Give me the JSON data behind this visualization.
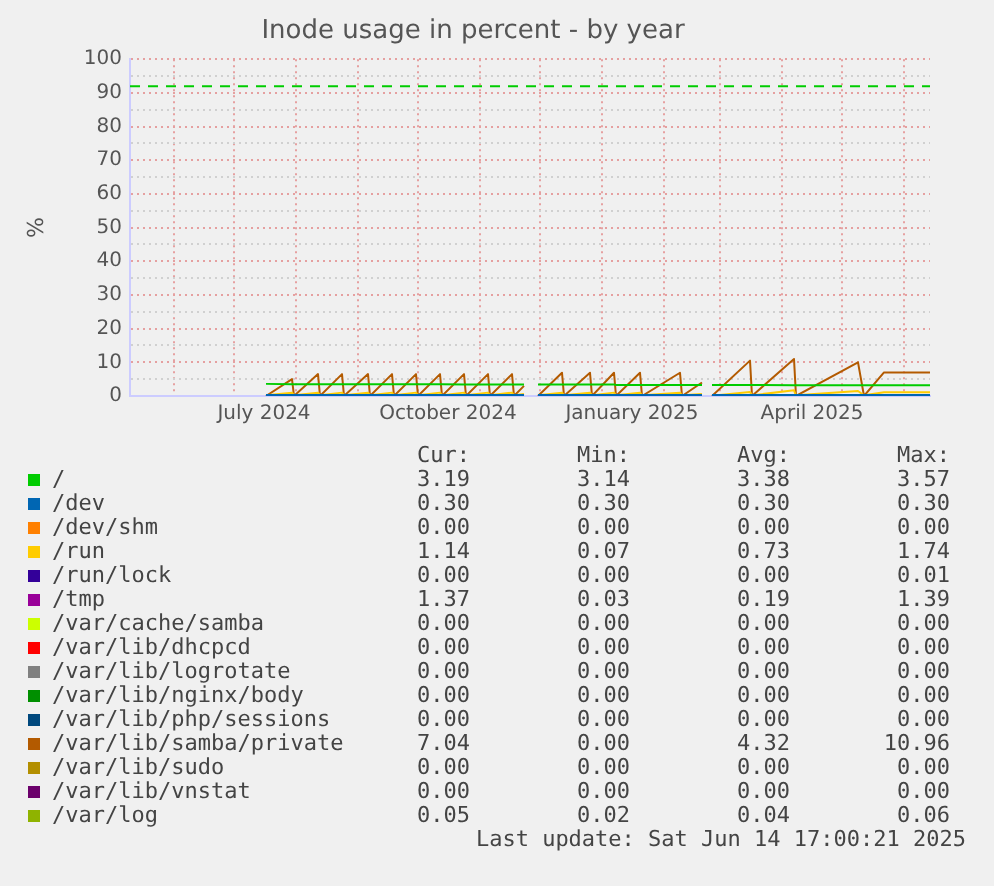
{
  "chart_data": {
    "type": "line",
    "title": "Inode usage in percent - by year",
    "ylabel": "%",
    "x": [
      "2024-07-17",
      "2024-07-30",
      "2024-07-31",
      "2024-08-12",
      "2024-08-13",
      "2024-08-24",
      "2024-08-25",
      "2024-09-06",
      "2024-09-07",
      "2024-09-18",
      "2024-09-19",
      "2024-09-30",
      "2024-10-01",
      "2024-10-12",
      "2024-10-13",
      "2024-10-24",
      "2024-10-25",
      "2024-11-05",
      "2024-11-06",
      "2024-11-17",
      "2024-11-18",
      "2024-11-23",
      "2024-11-26",
      "2024-11-30",
      "2024-12-12",
      "2024-12-13",
      "2024-12-26",
      "2024-12-27",
      "2025-01-07",
      "2025-01-08",
      "2025-01-20",
      "2025-01-21",
      "2025-02-09",
      "2025-02-10",
      "2025-02-20",
      "2025-02-22",
      "2025-02-25",
      "2025-03-16",
      "2025-03-17",
      "2025-04-07",
      "2025-04-08",
      "2025-05-09",
      "2025-05-12",
      "2025-05-22",
      "2025-06-14"
    ],
    "xlim": [
      "2024-05-10",
      "2025-06-14"
    ],
    "xticks": [
      {
        "value": "2024-06-01",
        "label": null
      },
      {
        "value": "2024-07-01",
        "label": null
      },
      {
        "value": "2024-07-16",
        "label": "July 2024"
      },
      {
        "value": "2024-08-01",
        "label": null
      },
      {
        "value": "2024-09-01",
        "label": null
      },
      {
        "value": "2024-10-01",
        "label": null
      },
      {
        "value": "2024-10-16",
        "label": "October 2024"
      },
      {
        "value": "2024-11-01",
        "label": null
      },
      {
        "value": "2024-12-01",
        "label": null
      },
      {
        "value": "2025-01-01",
        "label": null
      },
      {
        "value": "2025-01-16",
        "label": "January 2025"
      },
      {
        "value": "2025-02-01",
        "label": null
      },
      {
        "value": "2025-03-01",
        "label": null
      },
      {
        "value": "2025-04-01",
        "label": null
      },
      {
        "value": "2025-04-16",
        "label": "April 2025"
      },
      {
        "value": "2025-05-01",
        "label": null
      },
      {
        "value": "2025-06-01",
        "label": null
      }
    ],
    "ylim": [
      0,
      100
    ],
    "yticks": [
      0,
      {
        "value": 5,
        "label": null
      },
      10,
      {
        "value": 15,
        "label": null
      },
      20,
      {
        "value": 25,
        "label": null
      },
      30,
      {
        "value": 35,
        "label": null
      },
      40,
      {
        "value": 45,
        "label": null
      },
      50,
      {
        "value": 55,
        "label": null
      },
      60,
      {
        "value": 65,
        "label": null
      },
      70,
      {
        "value": 75,
        "label": null
      },
      80,
      {
        "value": 85,
        "label": null
      },
      90,
      {
        "value": 95,
        "label": null
      },
      100
    ],
    "grid": true,
    "legend": "bottom",
    "marker": "none",
    "line_style": "solid",
    "ref_lines": [
      {
        "axis": "y",
        "value": 92,
        "color": "#00cc00",
        "line_style": "dashed"
      }
    ],
    "series": [
      {
        "name": "/",
        "color": "#00cc00",
        "values": [
          3.6,
          3.5,
          3.5,
          3.5,
          3.5,
          3.5,
          3.5,
          3.5,
          3.5,
          3.5,
          3.5,
          3.5,
          3.5,
          3.5,
          3.5,
          3.4,
          3.4,
          3.4,
          3.4,
          3.4,
          3.4,
          3.4,
          null,
          3.4,
          3.4,
          3.4,
          3.4,
          3.4,
          3.4,
          3.3,
          3.3,
          3.3,
          3.3,
          3.3,
          3.3,
          null,
          3.3,
          3.3,
          3.3,
          3.2,
          3.2,
          3.2,
          3.2,
          3.2,
          3.2
        ]
      },
      {
        "name": "/dev",
        "color": "#0066b3",
        "values": [
          0.3,
          0.3,
          0.3,
          0.3,
          0.3,
          0.3,
          0.3,
          0.3,
          0.3,
          0.3,
          0.3,
          0.3,
          0.3,
          0.3,
          0.3,
          0.3,
          0.3,
          0.3,
          0.3,
          0.3,
          0.3,
          0.3,
          null,
          0.3,
          0.3,
          0.3,
          0.3,
          0.3,
          0.3,
          0.3,
          0.3,
          0.3,
          0.3,
          0.3,
          0.3,
          null,
          0.3,
          0.3,
          0.3,
          0.3,
          0.3,
          0.3,
          0.3,
          0.3,
          0.3
        ]
      },
      {
        "name": "/dev/shm",
        "color": "#ff8000",
        "values": [
          null,
          null,
          null,
          null,
          null,
          null,
          null,
          null,
          null,
          null,
          null,
          null,
          null,
          null,
          null,
          null,
          null,
          null,
          null,
          null,
          null,
          null,
          null,
          null,
          null,
          null,
          null,
          null,
          null,
          null,
          null,
          null,
          null,
          null,
          null,
          null,
          null,
          null,
          null,
          null,
          null,
          null,
          null,
          null,
          null
        ]
      },
      {
        "name": "/run",
        "color": "#ffcc00",
        "values": [
          0.2,
          1.0,
          0.2,
          1.0,
          0.2,
          1.0,
          0.2,
          1.0,
          0.2,
          1.0,
          0.2,
          1.0,
          0.2,
          1.0,
          0.2,
          1.0,
          0.2,
          1.0,
          0.2,
          1.0,
          0.2,
          0.6,
          null,
          0.2,
          1.0,
          0.2,
          1.0,
          0.2,
          1.0,
          0.2,
          1.0,
          0.2,
          1.0,
          0.2,
          0.6,
          null,
          0.1,
          1.2,
          0.2,
          1.7,
          0.2,
          1.5,
          0.2,
          1.1,
          1.1
        ]
      },
      {
        "name": "/run/lock",
        "color": "#330099",
        "values": [
          null,
          null,
          null,
          null,
          null,
          null,
          null,
          null,
          null,
          null,
          null,
          null,
          null,
          null,
          null,
          null,
          null,
          null,
          null,
          null,
          null,
          null,
          null,
          null,
          null,
          null,
          null,
          null,
          null,
          null,
          null,
          null,
          null,
          null,
          null,
          null,
          null,
          null,
          null,
          null,
          null,
          null,
          null,
          null,
          null
        ]
      },
      {
        "name": "/tmp",
        "color": "#990099",
        "values": [
          null,
          null,
          null,
          null,
          null,
          null,
          null,
          null,
          null,
          null,
          null,
          null,
          null,
          null,
          null,
          null,
          null,
          null,
          null,
          null,
          null,
          null,
          null,
          null,
          null,
          null,
          null,
          null,
          null,
          null,
          null,
          null,
          null,
          null,
          null,
          null,
          null,
          null,
          null,
          null,
          null,
          null,
          null,
          null,
          null
        ]
      },
      {
        "name": "/var/cache/samba",
        "color": "#ccff00",
        "values": [
          null,
          null,
          null,
          null,
          null,
          null,
          null,
          null,
          null,
          null,
          null,
          null,
          null,
          null,
          null,
          null,
          null,
          null,
          null,
          null,
          null,
          null,
          null,
          null,
          null,
          null,
          null,
          null,
          null,
          null,
          null,
          null,
          null,
          null,
          null,
          null,
          null,
          null,
          null,
          null,
          null,
          null,
          null,
          null,
          null
        ]
      },
      {
        "name": "/var/lib/dhcpcd",
        "color": "#ff0000",
        "values": [
          null,
          null,
          null,
          null,
          null,
          null,
          null,
          null,
          null,
          null,
          null,
          null,
          null,
          null,
          null,
          null,
          null,
          null,
          null,
          null,
          null,
          null,
          null,
          null,
          null,
          null,
          null,
          null,
          null,
          null,
          null,
          null,
          null,
          null,
          null,
          null,
          null,
          null,
          null,
          null,
          null,
          null,
          null,
          null,
          null
        ]
      },
      {
        "name": "/var/lib/logrotate",
        "color": "#808080",
        "values": [
          null,
          null,
          null,
          null,
          null,
          null,
          null,
          null,
          null,
          null,
          null,
          null,
          null,
          null,
          null,
          null,
          null,
          null,
          null,
          null,
          null,
          null,
          null,
          null,
          null,
          null,
          null,
          null,
          null,
          null,
          null,
          null,
          null,
          null,
          null,
          null,
          null,
          null,
          null,
          null,
          null,
          null,
          null,
          null,
          null
        ]
      },
      {
        "name": "/var/lib/nginx/body",
        "color": "#008f00",
        "values": [
          null,
          null,
          null,
          null,
          null,
          null,
          null,
          null,
          null,
          null,
          null,
          null,
          null,
          null,
          null,
          null,
          null,
          null,
          null,
          null,
          null,
          null,
          null,
          null,
          null,
          null,
          null,
          null,
          null,
          null,
          null,
          null,
          null,
          null,
          null,
          null,
          null,
          null,
          null,
          null,
          null,
          null,
          null,
          null,
          null
        ]
      },
      {
        "name": "/var/lib/php/sessions",
        "color": "#00487d",
        "values": [
          null,
          null,
          null,
          null,
          null,
          null,
          null,
          null,
          null,
          null,
          null,
          null,
          null,
          null,
          null,
          null,
          null,
          null,
          null,
          null,
          null,
          null,
          null,
          null,
          null,
          null,
          null,
          null,
          null,
          null,
          null,
          null,
          null,
          null,
          null,
          null,
          null,
          null,
          null,
          null,
          null,
          null,
          null,
          null,
          null
        ]
      },
      {
        "name": "/var/lib/samba/private",
        "color": "#b35a00",
        "values": [
          0,
          5.0,
          0,
          6.5,
          0,
          6.5,
          0,
          6.5,
          0,
          6.5,
          0,
          6.5,
          0,
          6.5,
          0,
          6.5,
          0,
          6.5,
          0,
          6.5,
          0,
          3.0,
          null,
          0,
          6.9,
          0,
          6.9,
          0,
          6.9,
          0,
          6.9,
          0,
          6.9,
          0,
          4.0,
          null,
          0,
          10.5,
          0,
          11.0,
          0,
          10.0,
          0,
          7.0,
          7.0
        ]
      },
      {
        "name": "/var/lib/sudo",
        "color": "#b38f00",
        "values": [
          null,
          null,
          null,
          null,
          null,
          null,
          null,
          null,
          null,
          null,
          null,
          null,
          null,
          null,
          null,
          null,
          null,
          null,
          null,
          null,
          null,
          null,
          null,
          null,
          null,
          null,
          null,
          null,
          null,
          null,
          null,
          null,
          null,
          null,
          null,
          null,
          null,
          null,
          null,
          null,
          null,
          null,
          null,
          null,
          null
        ]
      },
      {
        "name": "/var/lib/vnstat",
        "color": "#6b006b",
        "values": [
          null,
          null,
          null,
          null,
          null,
          null,
          null,
          null,
          null,
          null,
          null,
          null,
          null,
          null,
          null,
          null,
          null,
          null,
          null,
          null,
          null,
          null,
          null,
          null,
          null,
          null,
          null,
          null,
          null,
          null,
          null,
          null,
          null,
          null,
          null,
          null,
          null,
          null,
          null,
          null,
          null,
          null,
          null,
          null,
          null
        ]
      },
      {
        "name": "/var/log",
        "color": "#8fb300",
        "values": [
          null,
          null,
          null,
          null,
          null,
          null,
          null,
          null,
          null,
          null,
          null,
          null,
          null,
          null,
          null,
          null,
          null,
          null,
          null,
          null,
          null,
          null,
          null,
          null,
          null,
          null,
          null,
          null,
          null,
          null,
          null,
          null,
          null,
          null,
          null,
          null,
          null,
          null,
          null,
          null,
          null,
          null,
          null,
          null,
          null
        ]
      }
    ],
    "annotations": [
      "Cur:",
      "Min:",
      "Avg:",
      "Max:",
      "3.19",
      "3.14",
      "3.38",
      "3.57",
      "0.30",
      "0.30",
      "0.30",
      "0.30",
      "0.00",
      "0.00",
      "0.00",
      "0.00",
      "1.14",
      "0.07",
      "0.73",
      "1.74",
      "0.00",
      "0.00",
      "0.00",
      "0.01",
      "1.37",
      "0.03",
      "0.19",
      "1.39",
      "0.00",
      "0.00",
      "0.00",
      "0.00",
      "0.00",
      "0.00",
      "0.00",
      "0.00",
      "0.00",
      "0.00",
      "0.00",
      "0.00",
      "0.00",
      "0.00",
      "0.00",
      "0.00",
      "0.00",
      "0.00",
      "0.00",
      "0.00",
      "7.04",
      "0.00",
      "4.32",
      "10.96",
      "0.00",
      "0.00",
      "0.00",
      "0.00",
      "0.00",
      "0.00",
      "0.00",
      "0.00",
      "0.05",
      "0.02",
      "0.04",
      "0.06",
      "Last update: Sat Jun 14 17:00:21 2025"
    ]
  }
}
